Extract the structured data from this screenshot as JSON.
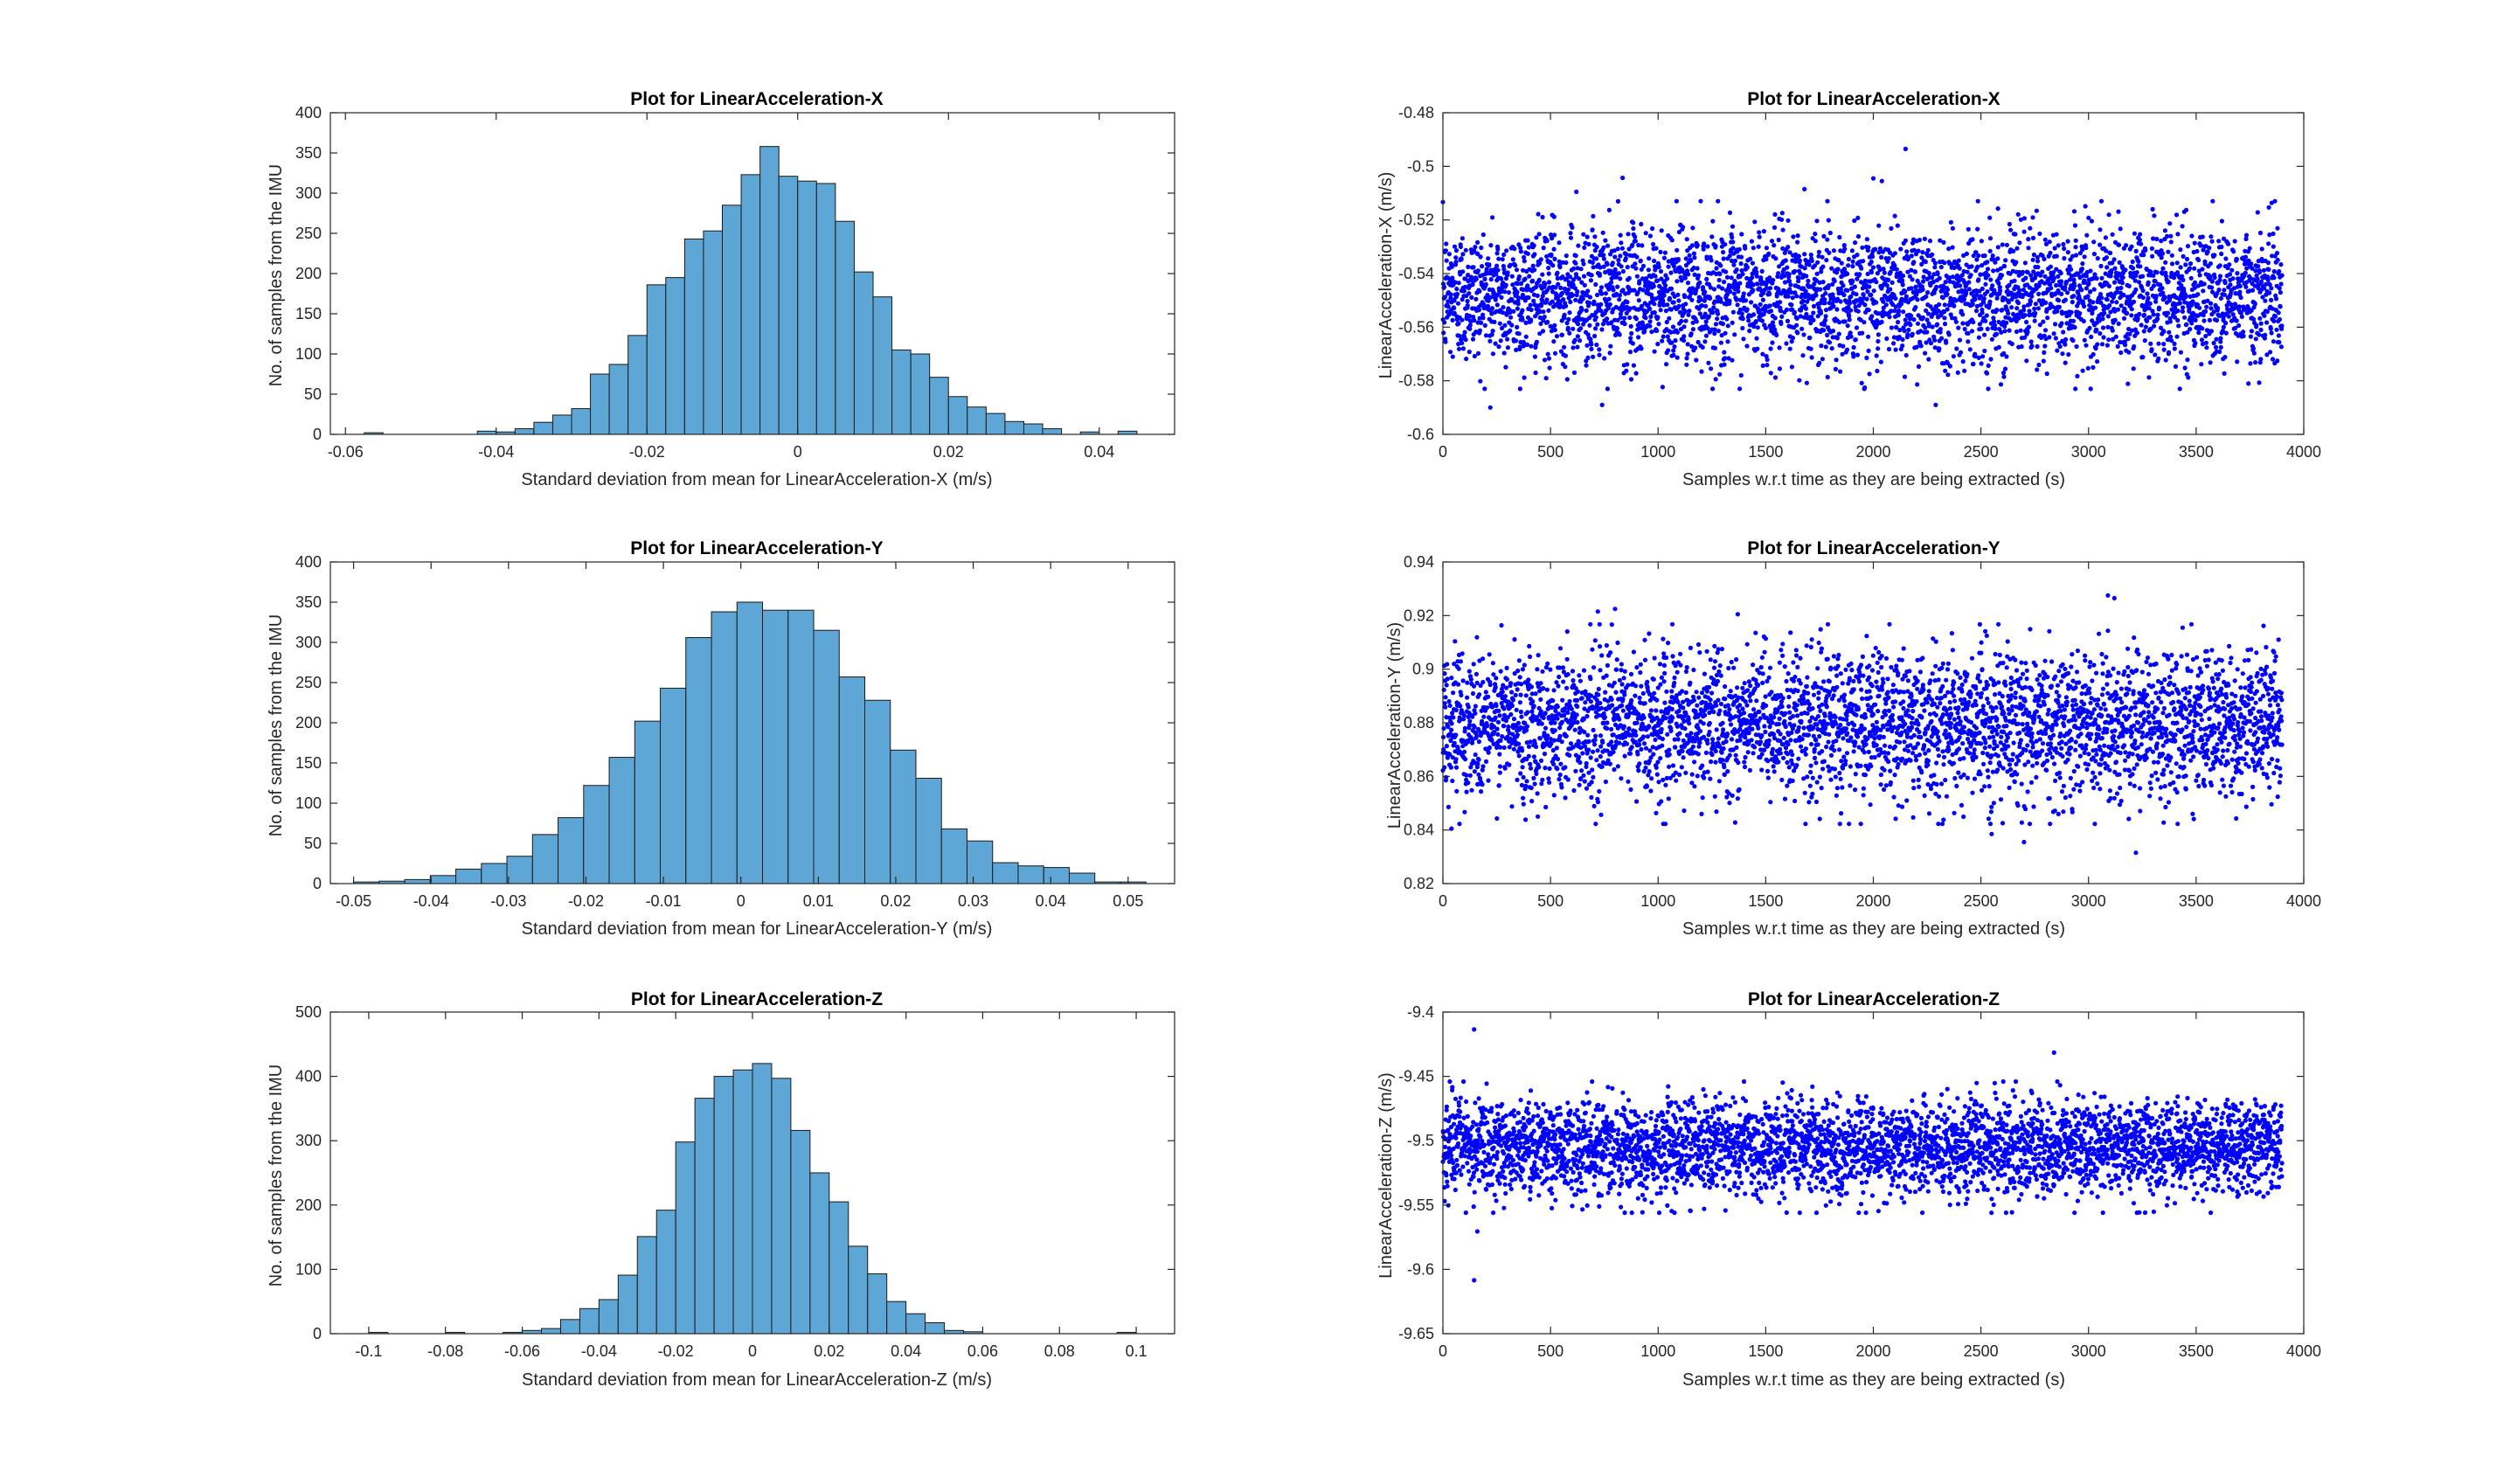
{
  "colors": {
    "hist_fill": "#5ea6d6",
    "hist_edge": "#1a1a1a",
    "scatter": "#0000ff",
    "axes": "#262626"
  },
  "chart_data": [
    {
      "type": "bar",
      "title": "Plot for LinearAcceleration-X",
      "xlabel": "Standard deviation from mean for LinearAcceleration-X (m/s)",
      "ylabel": "No. of samples from the IMU",
      "xlim": [
        -0.062,
        0.05
      ],
      "ylim": [
        0,
        400
      ],
      "xticks": [
        "-0.06",
        "-0.04",
        "-0.02",
        "0",
        "0.02",
        "0.04"
      ],
      "xtick_values": [
        -0.06,
        -0.04,
        -0.02,
        0,
        0.02,
        0.04
      ],
      "yticks": [
        "0",
        "50",
        "100",
        "150",
        "200",
        "250",
        "300",
        "350",
        "400"
      ],
      "ytick_values": [
        0,
        50,
        100,
        150,
        200,
        250,
        300,
        350,
        400
      ],
      "bin_edges": [
        -0.0575,
        -0.055,
        -0.0525,
        -0.05,
        -0.0475,
        -0.045,
        -0.0425,
        -0.04,
        -0.0375,
        -0.035,
        -0.0325,
        -0.03,
        -0.0275,
        -0.025,
        -0.0225,
        -0.02,
        -0.0175,
        -0.015,
        -0.0125,
        -0.01,
        -0.0075,
        -0.005,
        -0.0025,
        0.0,
        0.0025,
        0.005,
        0.0075,
        0.01,
        0.0125,
        0.015,
        0.0175,
        0.02,
        0.0225,
        0.025,
        0.0275,
        0.03,
        0.0325,
        0.035,
        0.0375,
        0.04,
        0.0425,
        0.045
      ],
      "counts": [
        2,
        0,
        0,
        0,
        0,
        0,
        4,
        3,
        7,
        15,
        24,
        32,
        75,
        87,
        123,
        186,
        195,
        243,
        253,
        285,
        323,
        358,
        321,
        315,
        312,
        265,
        202,
        171,
        105,
        100,
        71,
        47,
        34,
        26,
        16,
        13,
        7,
        0,
        3,
        0,
        4
      ]
    },
    {
      "type": "scatter",
      "title": "Plot for LinearAcceleration-X",
      "xlabel": "Samples w.r.t time as they are being extracted (s)",
      "ylabel": "LinearAcceleration-X (m/s)",
      "xlim": [
        0,
        4000
      ],
      "ylim": [
        -0.6,
        -0.48
      ],
      "xticks": [
        "0",
        "500",
        "1000",
        "1500",
        "2000",
        "2500",
        "3000",
        "3500",
        "4000"
      ],
      "xtick_values": [
        0,
        500,
        1000,
        1500,
        2000,
        2500,
        3000,
        3500,
        4000
      ],
      "yticks": [
        "-0.6",
        "-0.58",
        "-0.56",
        "-0.54",
        "-0.52",
        "-0.5",
        "-0.48"
      ],
      "ytick_values": [
        -0.6,
        -0.58,
        -0.56,
        -0.54,
        -0.52,
        -0.5,
        -0.48
      ],
      "n": 3900,
      "mean": -0.548,
      "std": 0.0125,
      "outliers": [
        [
          620,
          -0.5095
        ],
        [
          835,
          -0.5043
        ],
        [
          1680,
          -0.5085
        ],
        [
          2000,
          -0.5045
        ],
        [
          2040,
          -0.5055
        ],
        [
          2150,
          -0.4935
        ],
        [
          2100,
          -0.5185
        ],
        [
          220,
          -0.59
        ],
        [
          740,
          -0.589
        ],
        [
          2290,
          -0.589
        ]
      ]
    },
    {
      "type": "bar",
      "title": "Plot for LinearAcceleration-Y",
      "xlabel": "Standard deviation from mean for LinearAcceleration-Y (m/s)",
      "ylabel": "No. of samples from the IMU",
      "xlim": [
        -0.053,
        0.056
      ],
      "ylim": [
        0,
        400
      ],
      "xticks": [
        "-0.05",
        "-0.04",
        "-0.03",
        "-0.02",
        "-0.01",
        "0",
        "0.01",
        "0.02",
        "0.03",
        "0.04",
        "0.05"
      ],
      "xtick_values": [
        -0.05,
        -0.04,
        -0.03,
        -0.02,
        -0.01,
        0,
        0.01,
        0.02,
        0.03,
        0.04,
        0.05
      ],
      "yticks": [
        "0",
        "50",
        "100",
        "150",
        "200",
        "250",
        "300",
        "350",
        "400"
      ],
      "ytick_values": [
        0,
        50,
        100,
        150,
        200,
        250,
        300,
        350,
        400
      ],
      "bin_edges": [
        -0.05,
        -0.0467,
        -0.0434,
        -0.0401,
        -0.0368,
        -0.0335,
        -0.0302,
        -0.0269,
        -0.0236,
        -0.0203,
        -0.017,
        -0.0137,
        -0.0104,
        -0.0071,
        -0.0038,
        -0.0005,
        0.0028,
        0.0061,
        0.0094,
        0.0127,
        0.016,
        0.0193,
        0.0226,
        0.0259,
        0.0292,
        0.0325,
        0.0358,
        0.0391,
        0.0424,
        0.0457,
        0.049,
        0.0523
      ],
      "counts": [
        2,
        3,
        5,
        10,
        18,
        25,
        34,
        61,
        82,
        122,
        157,
        202,
        243,
        306,
        338,
        350,
        340,
        340,
        315,
        257,
        228,
        166,
        131,
        68,
        53,
        26,
        22,
        20,
        13,
        2,
        2
      ]
    },
    {
      "type": "scatter",
      "title": "Plot for LinearAcceleration-Y",
      "xlabel": "Samples w.r.t time as they are being extracted (s)",
      "ylabel": "LinearAcceleration-Y (m/s)",
      "xlim": [
        0,
        4000
      ],
      "ylim": [
        0.82,
        0.94
      ],
      "xticks": [
        "0",
        "500",
        "1000",
        "1500",
        "2000",
        "2500",
        "3000",
        "3500",
        "4000"
      ],
      "xtick_values": [
        0,
        500,
        1000,
        1500,
        2000,
        2500,
        3000,
        3500,
        4000
      ],
      "yticks": [
        "0.82",
        "0.84",
        "0.86",
        "0.88",
        "0.9",
        "0.92",
        "0.94"
      ],
      "ytick_values": [
        0.82,
        0.84,
        0.86,
        0.88,
        0.9,
        0.92,
        0.94
      ],
      "n": 3900,
      "mean": 0.8795,
      "std": 0.0133,
      "outliers": [
        [
          3090,
          0.9275
        ],
        [
          3120,
          0.9265
        ],
        [
          3220,
          0.8315
        ],
        [
          2700,
          0.8355
        ],
        [
          720,
          0.9215
        ],
        [
          800,
          0.9225
        ],
        [
          1370,
          0.9205
        ],
        [
          2550,
          0.8385
        ],
        [
          40,
          0.8405
        ]
      ]
    },
    {
      "type": "bar",
      "title": "Plot for LinearAcceleration-Z",
      "xlabel": "Standard deviation from mean for LinearAcceleration-Z (m/s)",
      "ylabel": "No. of samples from the IMU",
      "xlim": [
        -0.11,
        0.11
      ],
      "ylim": [
        0,
        500
      ],
      "xticks": [
        "-0.1",
        "-0.08",
        "-0.06",
        "-0.04",
        "-0.02",
        "0",
        "0.02",
        "0.04",
        "0.06",
        "0.08",
        "0.1"
      ],
      "xtick_values": [
        -0.1,
        -0.08,
        -0.06,
        -0.04,
        -0.02,
        0,
        0.02,
        0.04,
        0.06,
        0.08,
        0.1
      ],
      "yticks": [
        "0",
        "100",
        "200",
        "300",
        "400",
        "500"
      ],
      "ytick_values": [
        0,
        100,
        200,
        300,
        400,
        500
      ],
      "bin_edges": [
        -0.1,
        -0.095,
        -0.09,
        -0.085,
        -0.08,
        -0.075,
        -0.07,
        -0.065,
        -0.06,
        -0.055,
        -0.05,
        -0.045,
        -0.04,
        -0.035,
        -0.03,
        -0.025,
        -0.02,
        -0.015,
        -0.01,
        -0.005,
        0.0,
        0.005,
        0.01,
        0.015,
        0.02,
        0.025,
        0.03,
        0.035,
        0.04,
        0.045,
        0.05,
        0.055,
        0.06,
        0.065,
        0.07,
        0.075,
        0.08,
        0.085,
        0.09,
        0.095,
        0.1
      ],
      "counts": [
        2,
        0,
        0,
        0,
        2,
        0,
        0,
        2,
        5,
        8,
        22,
        39,
        53,
        91,
        151,
        192,
        298,
        366,
        400,
        410,
        420,
        397,
        316,
        250,
        205,
        136,
        93,
        50,
        31,
        17,
        5,
        3,
        0,
        0,
        0,
        0,
        0,
        0,
        0,
        2
      ]
    },
    {
      "type": "scatter",
      "title": "Plot for LinearAcceleration-Z",
      "xlabel": "Samples w.r.t time as they are being extracted (s)",
      "ylabel": "LinearAcceleration-Z (m/s)",
      "xlim": [
        0,
        4000
      ],
      "ylim": [
        -9.65,
        -9.4
      ],
      "xticks": [
        "0",
        "500",
        "1000",
        "1500",
        "2000",
        "2500",
        "3000",
        "3500",
        "4000"
      ],
      "xtick_values": [
        0,
        500,
        1000,
        1500,
        2000,
        2500,
        3000,
        3500,
        4000
      ],
      "yticks": [
        "-9.65",
        "-9.6",
        "-9.55",
        "-9.5",
        "-9.45",
        "-9.4"
      ],
      "ytick_values": [
        -9.65,
        -9.6,
        -9.55,
        -9.5,
        -9.45,
        -9.4
      ],
      "n": 3900,
      "mean": -9.505,
      "std": 0.0182,
      "outliers": [
        [
          145,
          -9.4135
        ],
        [
          2840,
          -9.4315
        ],
        [
          145,
          -9.6085
        ],
        [
          160,
          -9.5705
        ]
      ]
    }
  ]
}
